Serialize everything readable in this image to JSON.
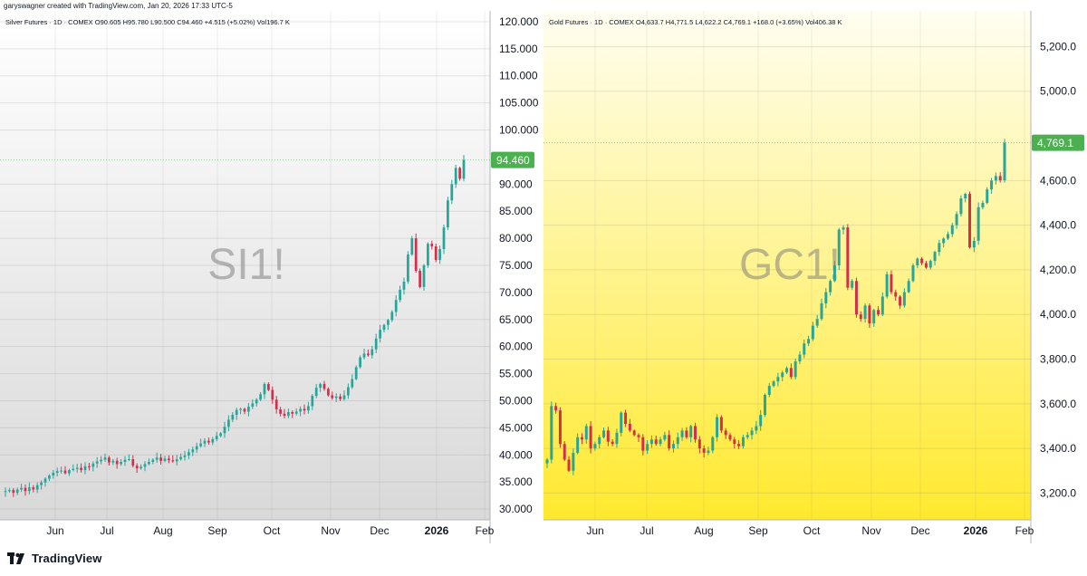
{
  "header": {
    "attribution": "garyswagner created with TradingView.com, Jan 20, 2026 17:33 UTC-5"
  },
  "brand": {
    "name": "TradingView",
    "icon": "tradingview-logo-icon"
  },
  "colors": {
    "up": "#26a69a",
    "down": "#d32f4a",
    "price_label": "#4caf50"
  },
  "chart_data": [
    {
      "type": "candlestick",
      "symbol": "SI1!",
      "info": "Silver Futures · 1D · COMEX  O90.605  H95.780  L90.500  C94.460  +4.515 (+5.02%)  Vol196.7 K",
      "last_price": "94.460",
      "x_labels": [
        "Jun",
        "Jul",
        "Aug",
        "Sep",
        "Oct",
        "Nov",
        "Dec",
        "2026",
        "Feb"
      ],
      "y_ticks": [
        "120.000",
        "115.000",
        "110.000",
        "105.000",
        "100.000",
        "90.000",
        "85.000",
        "80.000",
        "75.000",
        "70.000",
        "65.000",
        "60.000",
        "55.000",
        "50.000",
        "45.000",
        "40.000",
        "35.000",
        "30.000"
      ],
      "ylim": [
        28,
        122
      ],
      "background": [
        "#ffffff",
        "#d9d9d9"
      ],
      "closes": [
        33.3,
        33.5,
        33.0,
        33.6,
        33.9,
        33.3,
        34.0,
        33.6,
        34.4,
        34.9,
        35.6,
        36.2,
        36.7,
        37.0,
        37.1,
        36.6,
        37.2,
        37.4,
        37.6,
        37.2,
        37.9,
        37.8,
        38.4,
        38.8,
        39.1,
        39.5,
        38.6,
        38.9,
        38.3,
        38.7,
        39.1,
        39.2,
        38.0,
        37.5,
        37.8,
        38.3,
        38.7,
        39.1,
        39.5,
        38.9,
        39.3,
        39.0,
        38.8,
        39.2,
        39.6,
        39.9,
        40.5,
        41.0,
        41.6,
        42.1,
        42.6,
        42.3,
        42.9,
        43.5,
        44.0,
        45.2,
        46.5,
        47.4,
        48.3,
        48.5,
        48.0,
        48.9,
        49.5,
        50.2,
        51.2,
        53.1,
        52.0,
        50.2,
        48.4,
        47.6,
        47.2,
        47.9,
        47.6,
        48.0,
        48.5,
        48.2,
        49.0,
        50.9,
        52.4,
        53.1,
        52.2,
        51.0,
        50.5,
        50.8,
        50.3,
        51.0,
        52.5,
        54.0,
        56.2,
        58.0,
        58.7,
        58.4,
        59.5,
        61.5,
        63.1,
        64.0,
        64.9,
        66.4,
        68.6,
        70.5,
        72.0,
        77.0,
        80.0,
        74.0,
        71.0,
        75.0,
        79.0,
        78.5,
        76.0,
        78.0,
        82.0,
        87.0,
        90.0,
        93.0,
        91.0,
        94.46
      ],
      "price_range": [
        "30.000",
        "95.780"
      ]
    },
    {
      "type": "candlestick",
      "symbol": "GC1!",
      "info": "Gold Futures · 1D · COMEX  O4,633.7  H4,771.5  L4,622.2  C4,769.1  +168.0 (+3.65%)  Vol406.38 K",
      "last_price": "4,769.1",
      "x_labels": [
        "Jun",
        "Jul",
        "Aug",
        "Sep",
        "Oct",
        "Nov",
        "Dec",
        "2026",
        "Feb"
      ],
      "y_ticks": [
        "5,200.0",
        "5,000.0",
        "4,600.0",
        "4,400.0",
        "4,200.0",
        "4,000.0",
        "3,800.0",
        "3,600.0",
        "3,400.0",
        "3,200.0"
      ],
      "ylim": [
        3080,
        5360
      ],
      "background": [
        "#fffef2",
        "#ffe92e"
      ],
      "closes": [
        3350,
        3590,
        3570,
        3420,
        3350,
        3300,
        3380,
        3450,
        3440,
        3500,
        3400,
        3420,
        3450,
        3480,
        3430,
        3420,
        3470,
        3560,
        3510,
        3480,
        3460,
        3450,
        3390,
        3420,
        3440,
        3420,
        3440,
        3460,
        3400,
        3420,
        3450,
        3480,
        3450,
        3500,
        3440,
        3400,
        3380,
        3390,
        3450,
        3540,
        3480,
        3460,
        3440,
        3420,
        3410,
        3450,
        3460,
        3480,
        3500,
        3550,
        3640,
        3680,
        3700,
        3720,
        3740,
        3760,
        3720,
        3790,
        3820,
        3870,
        3890,
        3950,
        3980,
        4050,
        4100,
        4150,
        4220,
        4380,
        4390,
        4120,
        4150,
        4000,
        3980,
        4040,
        3960,
        4020,
        4000,
        4080,
        4180,
        4100,
        4080,
        4040,
        4100,
        4150,
        4220,
        4250,
        4230,
        4210,
        4240,
        4280,
        4320,
        4340,
        4360,
        4400,
        4450,
        4520,
        4540,
        4300,
        4330,
        4480,
        4500,
        4560,
        4600,
        4620,
        4601.1,
        4769.1
      ],
      "price_range": [
        "3,200.0",
        "4,771.5"
      ]
    }
  ]
}
